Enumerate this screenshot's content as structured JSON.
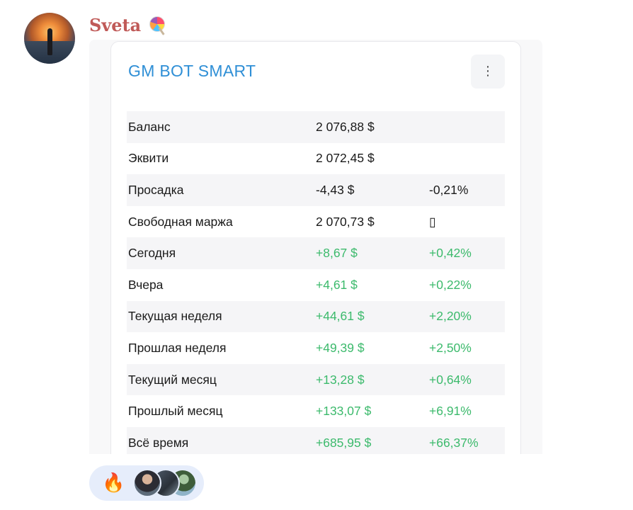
{
  "message": {
    "sender": "Sveta",
    "sender_emoji": "lollipop-icon"
  },
  "card": {
    "title": "GM BOT SMART",
    "menu_icon": "⋮",
    "rows": [
      {
        "label": "Баланс",
        "amount": "2 076,88 $",
        "pct": "",
        "tone": "neutral"
      },
      {
        "label": "Эквити",
        "amount": "2 072,45 $",
        "pct": "",
        "tone": "neutral"
      },
      {
        "label": "Просадка",
        "amount": "-4,43 $",
        "pct": "-0,21%",
        "tone": "neutral"
      },
      {
        "label": "Свободная маржа",
        "amount": "2 070,73 $",
        "pct": "▯",
        "tone": "neutral"
      },
      {
        "label": "Сегодня",
        "amount": "+8,67 $",
        "pct": "+0,42%",
        "tone": "positive"
      },
      {
        "label": "Вчера",
        "amount": "+4,61 $",
        "pct": "+0,22%",
        "tone": "positive"
      },
      {
        "label": "Текущая неделя",
        "amount": "+44,61 $",
        "pct": "+2,20%",
        "tone": "positive"
      },
      {
        "label": "Прошлая неделя",
        "amount": "+49,39 $",
        "pct": "+2,50%",
        "tone": "positive"
      },
      {
        "label": "Текущий месяц",
        "amount": "+13,28 $",
        "pct": "+0,64%",
        "tone": "positive"
      },
      {
        "label": "Прошлый месяц",
        "amount": "+133,07 $",
        "pct": "+6,91%",
        "tone": "positive"
      },
      {
        "label": "Всё время",
        "amount": "+685,95 $",
        "pct": "+66,37%",
        "tone": "positive"
      }
    ]
  },
  "reactions": {
    "emoji": "🔥",
    "emoji_name": "fire-icon",
    "colors": {
      "positive": "#3cba6c",
      "title": "#2f8fd6",
      "sender": "#c05a58",
      "pill": "#e6edfb"
    }
  }
}
